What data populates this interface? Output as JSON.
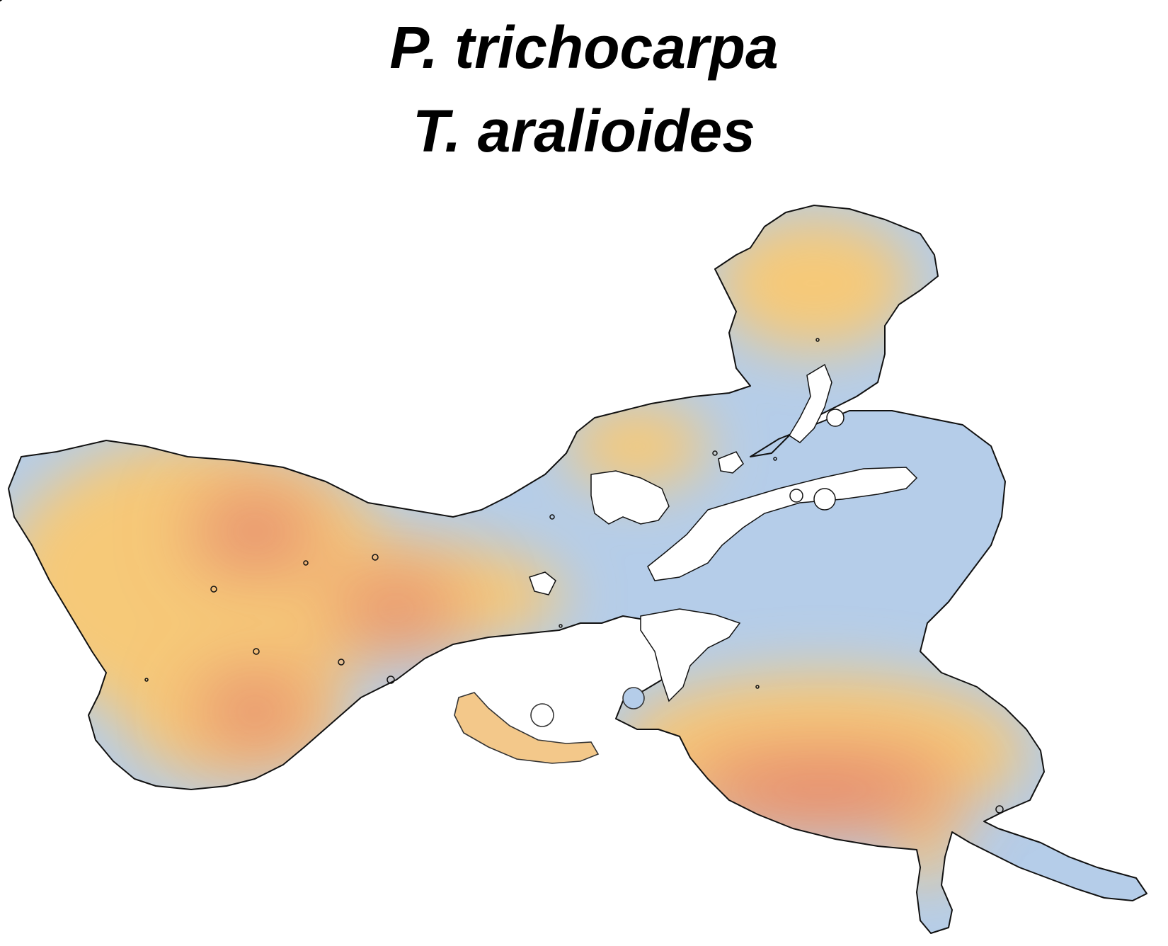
{
  "chart_data": {
    "type": "heatmap",
    "title_lines": [
      "P. trichocarpa",
      "T. aralioides"
    ],
    "xlabel": "",
    "ylabel": "",
    "legend": "none",
    "grid": false,
    "colors": {
      "low": "#b5cde9",
      "mid": "#f6c978",
      "high": "#de6b6b",
      "outline": "#111111"
    }
  }
}
